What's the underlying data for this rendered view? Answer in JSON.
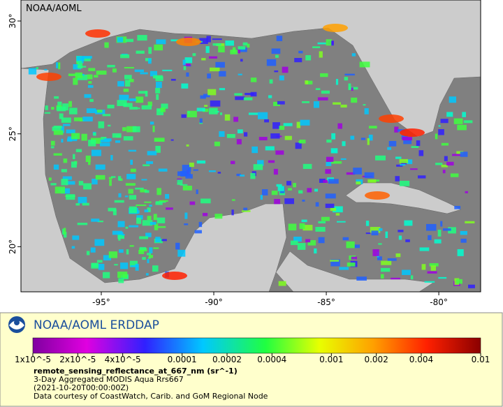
{
  "map": {
    "credit": "NOAA/AOML",
    "lon_range": [
      -98.57,
      -78.14
    ],
    "lat_range": [
      18.0,
      30.93
    ],
    "lon_ticks": [
      {
        "value": -95,
        "label": "-95°"
      },
      {
        "value": -90,
        "label": "-90°"
      },
      {
        "value": -85,
        "label": "-85°"
      },
      {
        "value": -80,
        "label": "-80°"
      }
    ],
    "lat_ticks": [
      {
        "value": 20,
        "label": "20°"
      },
      {
        "value": 25,
        "label": "25°"
      },
      {
        "value": 30,
        "label": "30°"
      }
    ]
  },
  "legend": {
    "brand": "NOAA/AOML ERDDAP",
    "scale_range": [
      1e-05,
      0.01
    ],
    "scale_ticks": [
      {
        "value": 1e-05,
        "label": "1x10^-5"
      },
      {
        "value": 2e-05,
        "label": "2x10^-5"
      },
      {
        "value": 4e-05,
        "label": "4x10^-5"
      },
      {
        "value": 0.0001,
        "label": "0.0001"
      },
      {
        "value": 0.0002,
        "label": "0.0002"
      },
      {
        "value": 0.0004,
        "label": "0.0004"
      },
      {
        "value": 0.001,
        "label": "0.001"
      },
      {
        "value": 0.002,
        "label": "0.002"
      },
      {
        "value": 0.004,
        "label": "0.004"
      },
      {
        "value": 0.01,
        "label": "0.01"
      }
    ],
    "variable": "remote_sensing_reflectance_at_667_nm (sr^-1)",
    "dataset": "3-Day Aggregated MODIS Aqua Rrs667",
    "time": "(2021-10-20T00:00:00Z)",
    "source": "Data courtesy of CoastWatch, Carib. and GoM Regional Node"
  }
}
